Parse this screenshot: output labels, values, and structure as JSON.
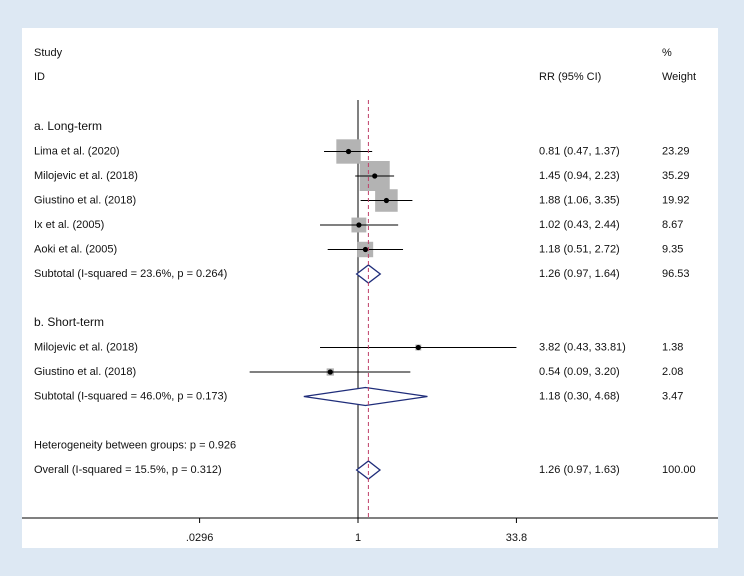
{
  "header": {
    "study_line1": "Study",
    "study_line2": "ID",
    "ci_label": "RR (95% CI)",
    "weight_line1": "%",
    "weight_line2": "Weight"
  },
  "footer": {
    "heterogeneity": "Heterogeneity between groups: p = 0.926"
  },
  "chart_data": {
    "type": "forest",
    "effect_measure": "RR (95% CI)",
    "x_scale": "log",
    "x_ticks": [
      {
        "value": 0.0296,
        "label": ".0296"
      },
      {
        "value": 1,
        "label": "1"
      },
      {
        "value": 33.8,
        "label": "33.8"
      }
    ],
    "null_line": 1,
    "overall_line": 1.26,
    "rows": [
      {
        "kind": "group",
        "label": "a. Long-term"
      },
      {
        "kind": "study",
        "label": "Lima et al. (2020)",
        "rr": 0.81,
        "lo": 0.47,
        "hi": 1.37,
        "ci_text": "0.81 (0.47, 1.37)",
        "weight": 23.29,
        "weight_text": "23.29"
      },
      {
        "kind": "study",
        "label": "Milojevic et al. (2018)",
        "rr": 1.45,
        "lo": 0.94,
        "hi": 2.23,
        "ci_text": "1.45 (0.94, 2.23)",
        "weight": 35.29,
        "weight_text": "35.29"
      },
      {
        "kind": "study",
        "label": "Giustino et al. (2018)",
        "rr": 1.88,
        "lo": 1.06,
        "hi": 3.35,
        "ci_text": "1.88 (1.06, 3.35)",
        "weight": 19.92,
        "weight_text": "19.92"
      },
      {
        "kind": "study",
        "label": "Ix et al. (2005)",
        "rr": 1.02,
        "lo": 0.43,
        "hi": 2.44,
        "ci_text": "1.02 (0.43, 2.44)",
        "weight": 8.67,
        "weight_text": "8.67"
      },
      {
        "kind": "study",
        "label": "Aoki et al. (2005)",
        "rr": 1.18,
        "lo": 0.51,
        "hi": 2.72,
        "ci_text": "1.18 (0.51, 2.72)",
        "weight": 9.35,
        "weight_text": "9.35"
      },
      {
        "kind": "subtotal",
        "label": "Subtotal  (I-squared = 23.6%, p = 0.264)",
        "rr": 1.26,
        "lo": 0.97,
        "hi": 1.64,
        "ci_text": "1.26 (0.97, 1.64)",
        "weight_text": "96.53"
      },
      {
        "kind": "spacer"
      },
      {
        "kind": "group",
        "label": "b. Short-term"
      },
      {
        "kind": "study",
        "label": "Milojevic et al. (2018)",
        "rr": 3.82,
        "lo": 0.43,
        "hi": 33.81,
        "ci_text": "3.82 (0.43, 33.81)",
        "weight": 1.38,
        "weight_text": "1.38"
      },
      {
        "kind": "study",
        "label": "Giustino et al. (2018)",
        "rr": 0.54,
        "lo": 0.09,
        "hi": 3.2,
        "ci_text": "0.54 (0.09, 3.20)",
        "weight": 2.08,
        "weight_text": "2.08"
      },
      {
        "kind": "subtotal",
        "label": "Subtotal  (I-squared = 46.0%, p = 0.173)",
        "rr": 1.18,
        "lo": 0.3,
        "hi": 4.68,
        "ci_text": "1.18 (0.30, 4.68)",
        "weight_text": "3.47"
      },
      {
        "kind": "spacer"
      },
      {
        "kind": "heterogeneity"
      },
      {
        "kind": "overall",
        "label": "Overall  (I-squared = 15.5%, p = 0.312)",
        "rr": 1.26,
        "lo": 0.97,
        "hi": 1.63,
        "ci_text": "1.26 (0.97, 1.63)",
        "weight_text": "100.00"
      }
    ],
    "colors": {
      "box": "#b3b3b3",
      "line": "#000000",
      "diamond": "#1f2d7a",
      "overall_line": "#c0406a",
      "background": "#dde8f3",
      "panel": "#ffffff"
    }
  }
}
